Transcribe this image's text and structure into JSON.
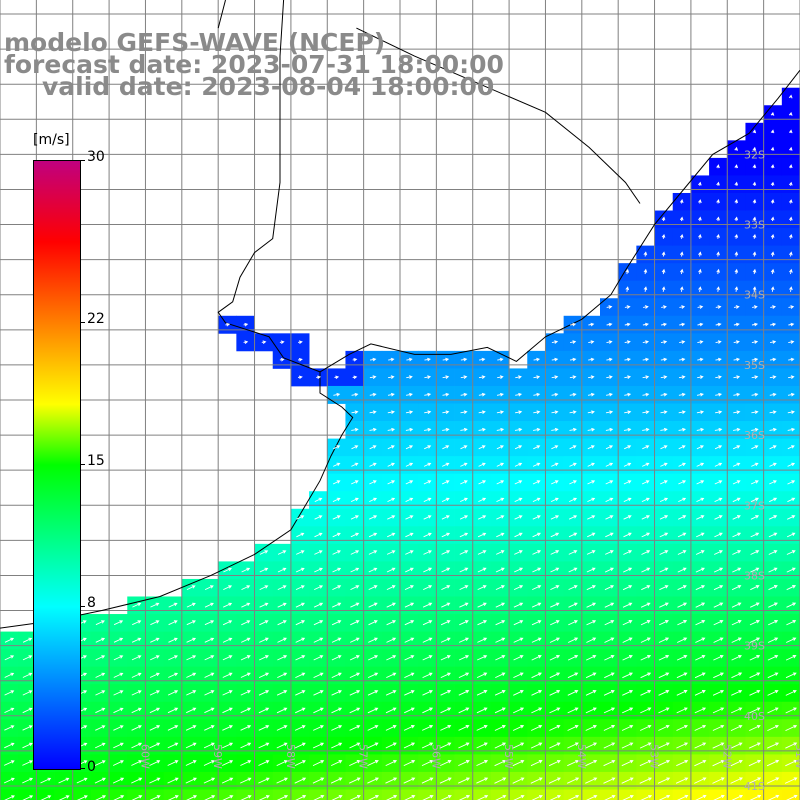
{
  "title": {
    "line1": "modelo GEFS-WAVE (NCEP)",
    "line2": "forecast date: 2023-07-31 18:00:00",
    "line3": "valid date: 2023-08-04 18:00:00"
  },
  "colorbar": {
    "unit": "[m/s]",
    "min": 0,
    "max": 30,
    "ticks": [
      "30",
      "22",
      "15",
      "8",
      "0"
    ],
    "tick_values": [
      30,
      22,
      15,
      8,
      0
    ],
    "colors": [
      "#0000ff",
      "#00ffff",
      "#00ff00",
      "#ffff00",
      "#ff8000",
      "#ff0000",
      "#c0007f"
    ]
  },
  "map": {
    "lon_range": [
      -62,
      -51
    ],
    "lat_range": [
      -41.2,
      -29.8
    ],
    "lat_labels": [
      "32S",
      "33S",
      "34S",
      "35S",
      "36S",
      "37S",
      "38S",
      "39S",
      "40S",
      "41S"
    ],
    "lon_labels": [
      "61W",
      "60W",
      "59W",
      "58W",
      "57W",
      "56W",
      "55W",
      "54W",
      "53W",
      "52W",
      "51W"
    ],
    "land_color": "#ffffff",
    "grid_color": "#808080",
    "coast_color": "#000000"
  }
}
